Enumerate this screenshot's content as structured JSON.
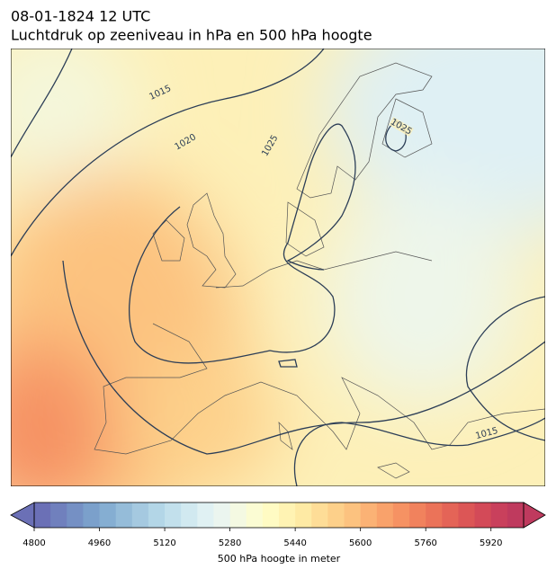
{
  "title": "08-01-1824 12 UTC",
  "subtitle": "Luchtdruk op zeeniveau in hPa en 500 hPa hoogte",
  "contour_labels": [
    "1015",
    "1020",
    "1025",
    "1025",
    "1015"
  ],
  "colorbar": {
    "lim": [
      4800,
      6000
    ],
    "ticks": [
      4800,
      4960,
      5120,
      5280,
      5440,
      5600,
      5760,
      5920
    ],
    "label": "500 hPa hoogte in meter",
    "colors": [
      "#6b70b6",
      "#7080bd",
      "#7590c4",
      "#7ba0cb",
      "#85aed2",
      "#95bcd9",
      "#a5c9e0",
      "#b3d6e7",
      "#c2e0ec",
      "#d1e9f0",
      "#e0f1f3",
      "#ebf5ef",
      "#f4f9e2",
      "#fbfcd3",
      "#fffbc3",
      "#fff3b3",
      "#feeaa4",
      "#fedd97",
      "#fdd08a",
      "#fcc27f",
      "#fbb275",
      "#f9a26b",
      "#f69263",
      "#f1825d",
      "#eb7359",
      "#e46457",
      "#dc5656",
      "#d34a58",
      "#c9405c",
      "#bf3a5e"
    ]
  }
}
